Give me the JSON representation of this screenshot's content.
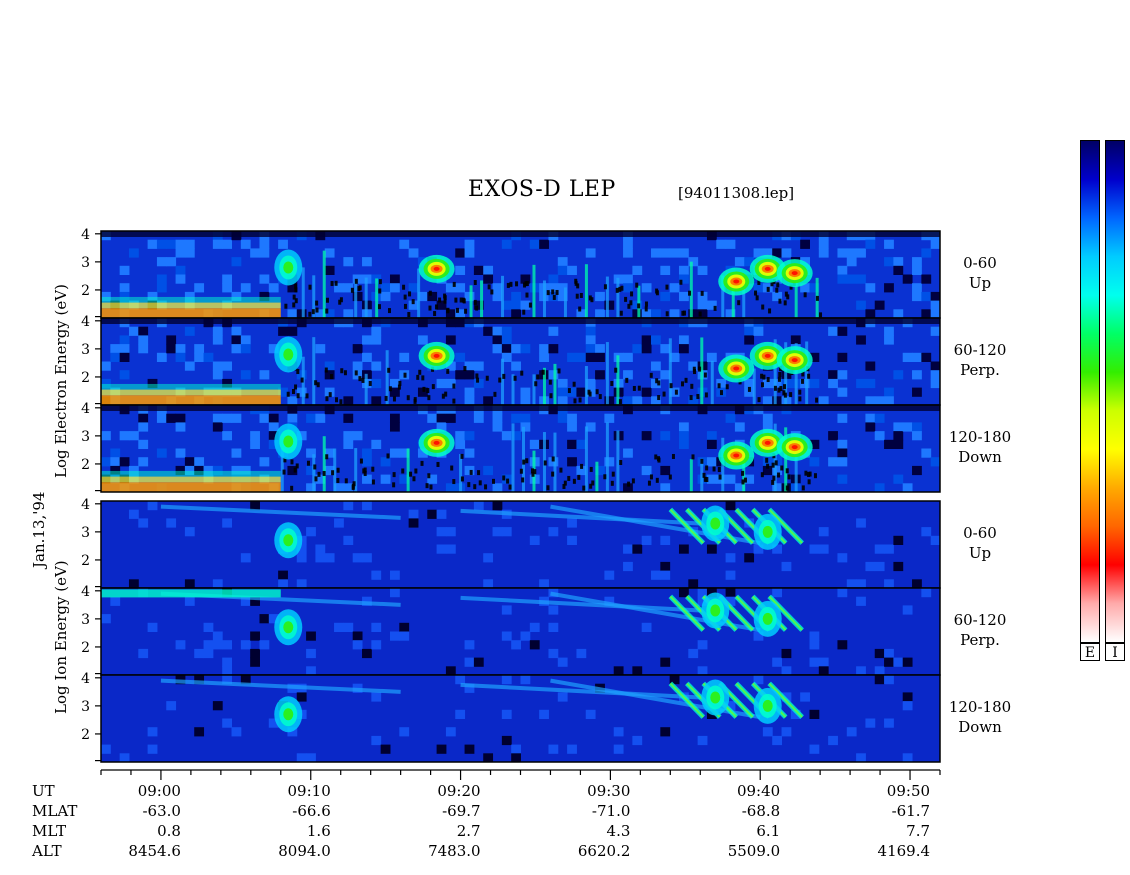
{
  "header": {
    "title": "EXOS-D LEP",
    "file": "[94011308.lep]"
  },
  "date_label": "Jan.13,'94",
  "electron_ylabel": [
    "Log",
    "Electron",
    "Energy",
    "(eV)"
  ],
  "ion_ylabel": [
    "Log",
    "Ion",
    "Energy",
    "(eV)"
  ],
  "channels": [
    {
      "range": "0-60",
      "dir": "Up"
    },
    {
      "range": "60-120",
      "dir": "Perp."
    },
    {
      "range": "120-180",
      "dir": "Down"
    },
    {
      "range": "0-60",
      "dir": "Up"
    },
    {
      "range": "60-120",
      "dir": "Perp."
    },
    {
      "range": "120-180",
      "dir": "Down"
    }
  ],
  "colorbar": {
    "letters": [
      "E",
      "I"
    ],
    "stops": [
      "#000066",
      "#0000cc",
      "#0066ff",
      "#00ccff",
      "#00ffee",
      "#00ff66",
      "#33ee00",
      "#ccff00",
      "#ffff00",
      "#ffaa00",
      "#ff6600",
      "#ff0000",
      "#ffaaaa",
      "#ffffff"
    ]
  },
  "chart_data": {
    "type": "heatmap",
    "title": "EXOS-D LEP",
    "ytick_labels": [
      "2",
      "3",
      "4"
    ],
    "xtick_labels": [
      "09:00",
      "09:10",
      "09:20",
      "09:30",
      "09:40",
      "09:50"
    ],
    "x_time_minutes": [
      540,
      550,
      560,
      570,
      580,
      590
    ],
    "xlim_minutes": [
      536,
      592
    ],
    "ylim": [
      1,
      4.1
    ],
    "ephemeris": {
      "rows": [
        {
          "label": "UT",
          "values": [
            "09:00",
            "09:10",
            "09:20",
            "09:30",
            "09:40",
            "09:50"
          ]
        },
        {
          "label": "MLAT",
          "values": [
            "-63.0",
            "-66.6",
            "-69.7",
            "-71.0",
            "-68.8",
            "-61.7"
          ]
        },
        {
          "label": "MLT",
          "values": [
            "0.8",
            "1.6",
            "2.7",
            "4.3",
            "6.1",
            "7.7"
          ]
        },
        {
          "label": "ALT",
          "values": [
            "8454.6",
            "8094.0",
            "7483.0",
            "6620.2",
            "5509.0",
            "4169.4"
          ]
        }
      ]
    },
    "panels": [
      {
        "species": "electron",
        "pitch": "0-60",
        "dir": "Up"
      },
      {
        "species": "electron",
        "pitch": "60-120",
        "dir": "Perp."
      },
      {
        "species": "electron",
        "pitch": "120-180",
        "dir": "Down"
      },
      {
        "species": "ion",
        "pitch": "0-60",
        "dir": "Up"
      },
      {
        "species": "ion",
        "pitch": "60-120",
        "dir": "Perp."
      },
      {
        "species": "ion",
        "pitch": "120-180",
        "dir": "Down"
      }
    ],
    "features": [
      {
        "species": "electron",
        "t": 558.4,
        "logE": 2.75,
        "intensity": "high"
      },
      {
        "species": "electron",
        "t": 580.5,
        "logE": 2.75,
        "intensity": "high"
      },
      {
        "species": "electron",
        "t": 582.3,
        "logE": 2.6,
        "intensity": "high"
      },
      {
        "species": "electron",
        "t": 578.4,
        "logE": 2.3,
        "intensity": "high"
      },
      {
        "species": "electron",
        "t": 548.5,
        "logE": 2.8,
        "intensity": "medium"
      },
      {
        "species": "ion",
        "t": 548.5,
        "logE": 2.7,
        "intensity": "medium"
      },
      {
        "species": "ion",
        "t": 577,
        "logE": 3.3,
        "intensity": "medium"
      },
      {
        "species": "ion",
        "t": 580.5,
        "logE": 3.0,
        "intensity": "medium"
      }
    ]
  }
}
